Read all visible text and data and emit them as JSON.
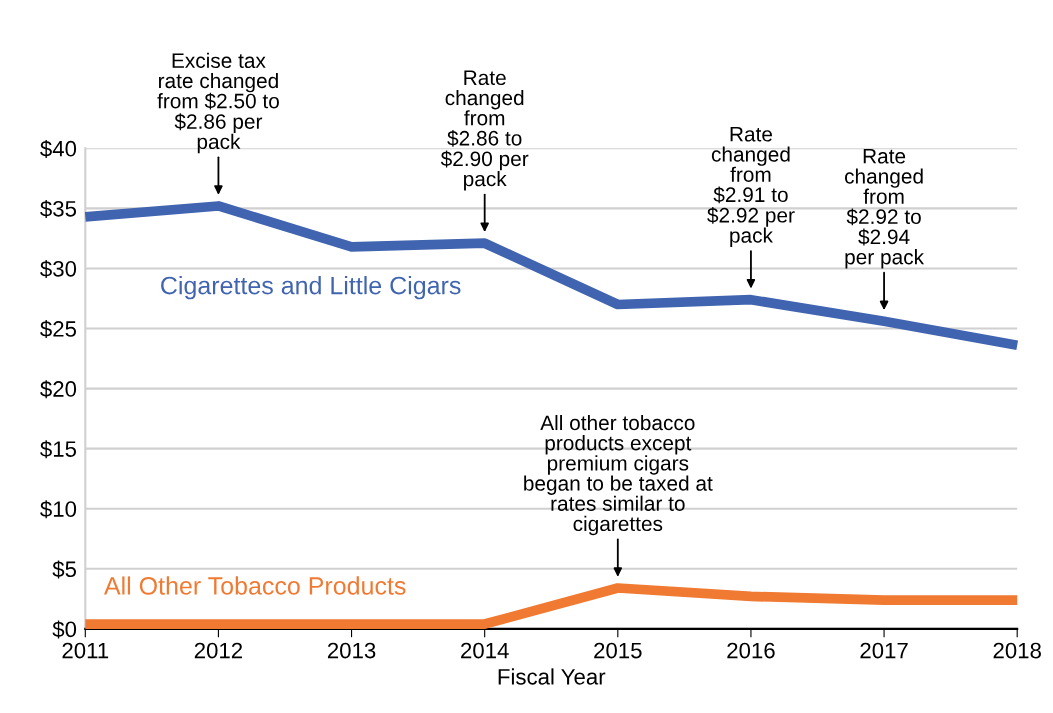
{
  "chart_data": {
    "type": "line",
    "xlabel": "Fiscal Year",
    "x": [
      2011,
      2012,
      2013,
      2014,
      2015,
      2016,
      2017,
      2018
    ],
    "series": [
      {
        "name": "Cigarettes and Little Cigars",
        "color": "#4064b0",
        "values": [
          34.3,
          35.2,
          31.8,
          32.1,
          27.0,
          27.4,
          25.6,
          23.6
        ]
      },
      {
        "name": "All Other Tobacco Products",
        "color": "#f07a32",
        "values": [
          0.4,
          0.4,
          0.4,
          0.4,
          3.4,
          2.7,
          2.4,
          2.4
        ]
      }
    ],
    "xlim": [
      2011,
      2018
    ],
    "xticks": [
      2011,
      2012,
      2013,
      2014,
      2015,
      2016,
      2017,
      2018
    ],
    "ylim": [
      0,
      40
    ],
    "yticks": [
      {
        "value": 0,
        "label": "$0"
      },
      {
        "value": 5,
        "label": "$5"
      },
      {
        "value": 10,
        "label": "$10"
      },
      {
        "value": 15,
        "label": "$15"
      },
      {
        "value": 20,
        "label": "$20"
      },
      {
        "value": 25,
        "label": "$25"
      },
      {
        "value": 30,
        "label": "$30"
      },
      {
        "value": 35,
        "label": "$35"
      },
      {
        "value": 40,
        "label": "$40"
      }
    ],
    "grid": "y",
    "legend": false,
    "marker": "none",
    "line_style": "solid",
    "annotations": [
      {
        "text": "Excise tax\nrate changed\nfrom $2.50 to\n$2.86 per\npack",
        "x": 2012,
        "y": 35.2
      },
      {
        "text": "Rate\nchanged\nfrom\n$2.86 to\n$2.90 per\npack",
        "x": 2014,
        "y": 32.1
      },
      {
        "text": "Rate\nchanged\nfrom\n$2.91 to\n$2.92 per\npack",
        "x": 2016,
        "y": 27.4
      },
      {
        "text": "Rate\nchanged\nfrom\n$2.92 to\n$2.94\nper pack",
        "x": 2017,
        "y": 25.6
      },
      {
        "text": "All other tobacco\nproducts except\npremium cigars\nbegan to be taxed at\nrates similar to\ncigarettes",
        "x": 2015,
        "y": 3.4
      }
    ]
  }
}
